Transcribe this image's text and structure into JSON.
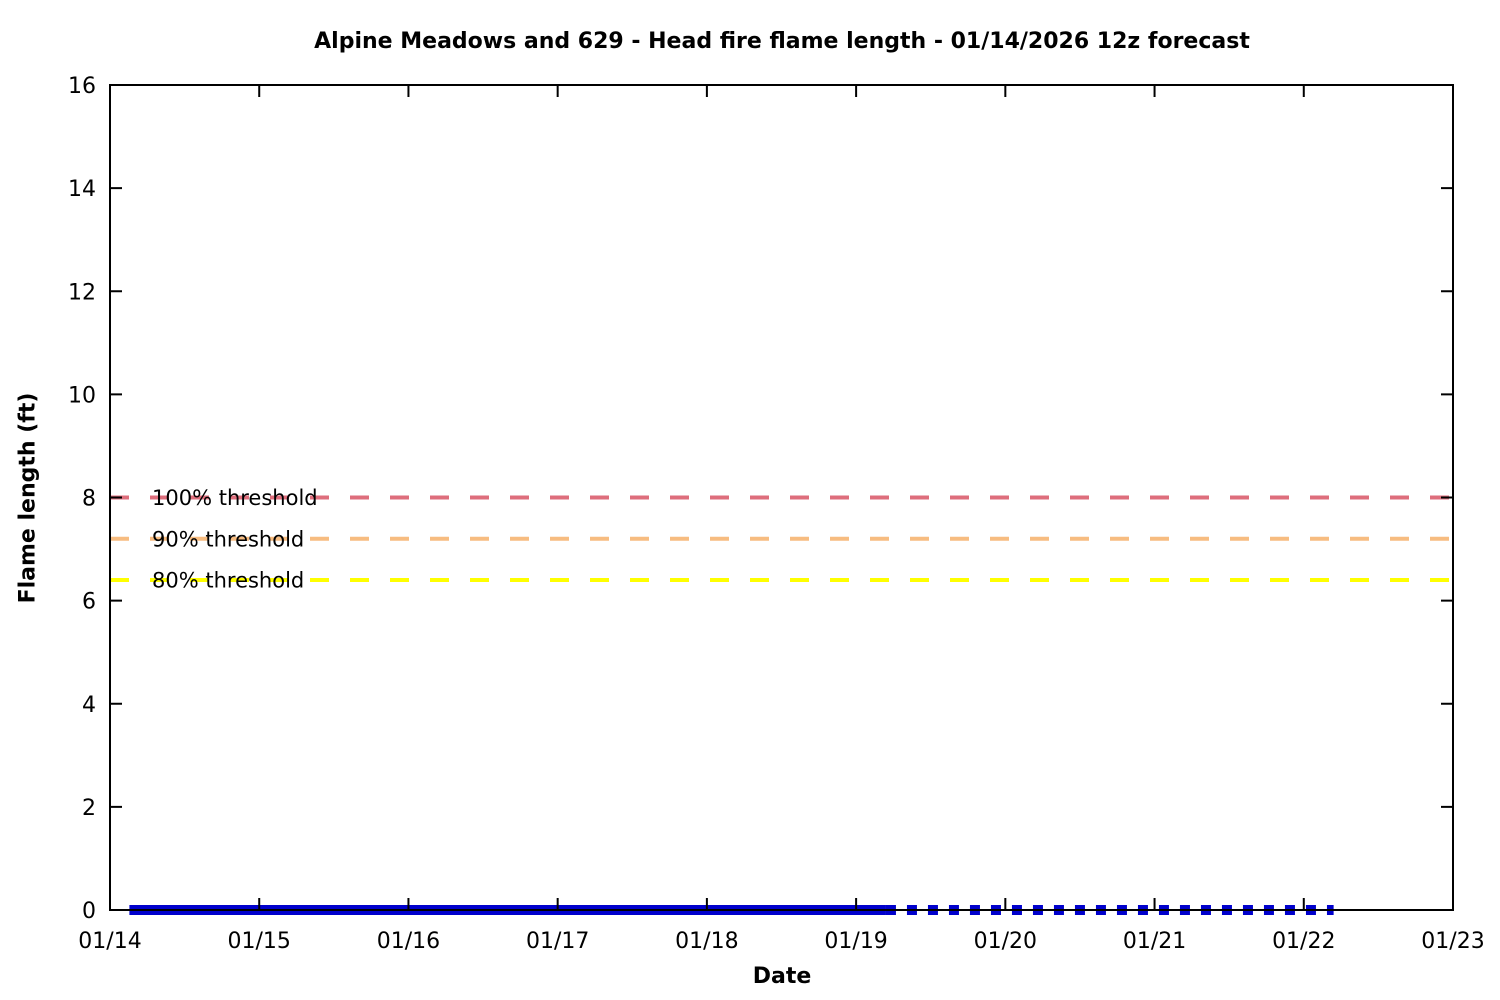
{
  "chart_data": {
    "type": "line",
    "title": "Alpine Meadows and 629 - Head fire flame length - 01/14/2026 12z forecast",
    "xlabel": "Date",
    "ylabel": "Flame length (ft)",
    "ylim": [
      0,
      16
    ],
    "ytick_step": 2,
    "ytick_labels": [
      "0",
      "2",
      "4",
      "6",
      "8",
      "10",
      "12",
      "14",
      "16"
    ],
    "xtick_labels": [
      "01/14",
      "01/15",
      "01/16",
      "01/17",
      "01/18",
      "01/19",
      "01/20",
      "01/21",
      "01/22",
      "01/23"
    ],
    "xlim_days": [
      0,
      9
    ],
    "grid": false,
    "legend_position": "none",
    "frame_color": "#000000",
    "background_color": "#ffffff",
    "thresholds": [
      {
        "label": "100% threshold",
        "value": 8.0,
        "color": "#de6e7c",
        "line_style": "dashed"
      },
      {
        "label": "90% threshold",
        "value": 7.2,
        "color": "#f7bc80",
        "line_style": "dashed"
      },
      {
        "label": "80% threshold",
        "value": 6.4,
        "color": "#ffff00",
        "line_style": "dashed"
      }
    ],
    "series": [
      {
        "name": "flame-length-forecast-solid",
        "color": "#0000cc",
        "style": "solid",
        "value": 0,
        "x_start_day": 0.13,
        "x_end_day": 5.2
      },
      {
        "name": "flame-length-forecast-dotted",
        "color": "#0000cc",
        "style": "dotted",
        "value": 0,
        "x_start_day": 5.2,
        "x_end_day": 8.2
      }
    ]
  }
}
